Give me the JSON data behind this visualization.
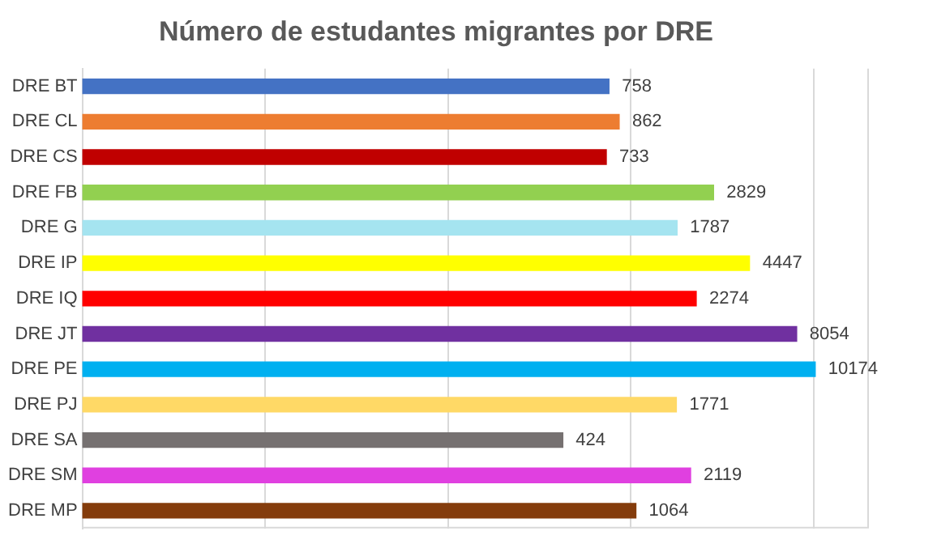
{
  "chart_data": {
    "type": "bar",
    "orientation": "horizontal",
    "title": "Número de estudantes migrantes por DRE",
    "categories": [
      "DRE BT",
      "DRE CL",
      "DRE CS",
      "DRE FB",
      "DRE G",
      "DRE IP",
      "DRE IQ",
      "DRE JT",
      "DRE PE",
      "DRE PJ",
      "DRE SA",
      "DRE SM",
      "DRE MP"
    ],
    "values": [
      758,
      862,
      733,
      2829,
      1787,
      4447,
      2274,
      8054,
      10174,
      1771,
      424,
      2119,
      1064
    ],
    "colors": [
      "#4472c4",
      "#ed7d31",
      "#c00000",
      "#92d050",
      "#a5e4f0",
      "#ffff00",
      "#ff0000",
      "#7030a0",
      "#00b0f0",
      "#ffd966",
      "#767171",
      "#e040e0",
      "#843c0c"
    ],
    "log": "x",
    "xlim": [
      1,
      20000
    ],
    "xticks": [
      {
        "value": 1,
        "label": null
      },
      {
        "value": 10,
        "label": null
      },
      {
        "value": 100,
        "label": null
      },
      {
        "value": 1000,
        "label": null
      },
      {
        "value": 10000,
        "label": null
      }
    ],
    "tick_labels": "y",
    "grid": "x",
    "data_labels": true,
    "legend": false
  }
}
